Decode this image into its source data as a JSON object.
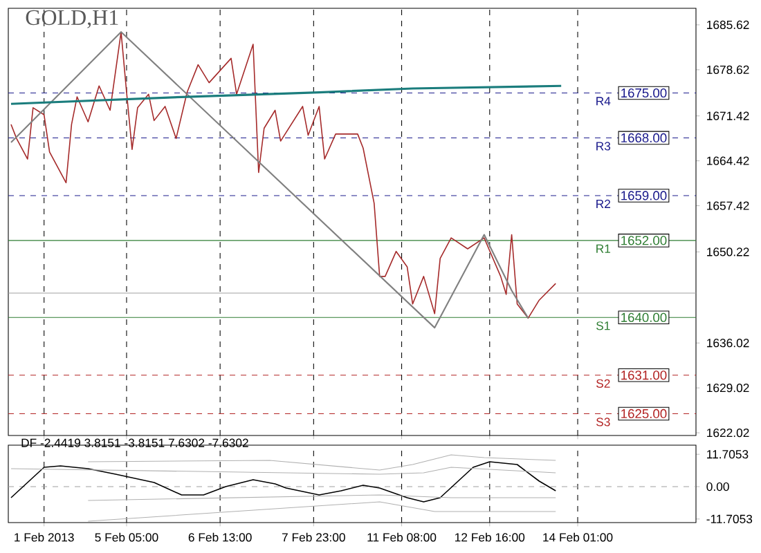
{
  "chart_data": [
    {
      "type": "line",
      "title": "GOLD,H1",
      "categories": [
        null,
        null,
        null,
        null,
        null,
        null,
        null,
        null,
        null,
        null,
        null,
        null,
        null,
        null,
        null,
        null,
        null,
        null,
        null,
        null,
        null,
        null,
        null,
        null,
        null,
        null,
        null,
        null,
        null,
        null,
        null,
        null,
        null,
        null,
        null,
        null,
        null,
        null,
        null,
        null,
        null,
        null,
        null,
        null,
        null,
        null,
        null,
        null,
        null,
        null,
        null,
        null,
        null,
        null,
        null,
        null,
        null,
        null,
        null,
        null,
        null,
        null,
        null,
        null,
        null,
        null,
        null,
        null,
        null,
        null,
        null,
        null,
        null,
        null,
        null,
        null,
        null,
        null,
        null,
        null,
        null,
        null,
        null,
        null,
        null,
        null,
        null,
        null,
        null,
        null,
        null,
        null,
        null,
        null,
        null,
        null,
        null,
        null,
        null,
        null,
        null,
        null,
        null,
        null,
        null,
        null,
        null,
        null,
        null,
        null,
        null,
        null,
        null,
        null,
        null,
        null,
        null,
        null,
        null,
        null,
        null,
        null,
        null,
        null,
        null
      ],
      "ylim": [
        1621.6,
        1688.2
      ],
      "yticks": [
        1622.02,
        1629.02,
        1636.02,
        1650.22,
        1657.42,
        1664.42,
        1671.42,
        1678.62,
        1685.62
      ],
      "tick_labels": "y",
      "grid": "x",
      "marker": "none",
      "line_style": "solid",
      "series": [
        {
          "color": "#a52a2a",
          "values": [
            1670.1,
            1667.9,
            null,
            1664.7,
            1672.7,
            null,
            1671.6,
            1665.8,
            null,
            null,
            1661.0,
            1670.1,
            1674.4,
            null,
            1670.5,
            null,
            1676.1,
            null,
            1672.3,
            null,
            1684.5,
            1675.1,
            1666.2,
            1672.7,
            null,
            1674.8,
            1670.7,
            null,
            1672.9,
            null,
            1667.9,
            null,
            1675.1,
            null,
            1679.4,
            null,
            1676.6,
            null,
            null,
            null,
            1680.4,
            1674.8,
            null,
            null,
            1682.6,
            1662.6,
            1669.5,
            null,
            1672.3,
            1667.5,
            null,
            null,
            null,
            1672.9,
            1668.4,
            null,
            1672.9,
            1664.7,
            null,
            1668.6,
            null,
            null,
            null,
            1668.6,
            1666.4,
            null,
            1657.8,
            1646.4,
            1646.4,
            null,
            1650.3,
            null,
            1647.9,
            1642.1,
            null,
            1646.4,
            null,
            1640.6,
            1649.2,
            null,
            1652.4,
            null,
            null,
            1650.7,
            null,
            null,
            1652.4,
            null,
            null,
            1646.4,
            1643.6,
            1652.9,
            1642.1,
            null,
            1639.9,
            null,
            1642.7,
            null,
            null,
            1645.3,
            null,
            null,
            null,
            null,
            null,
            null,
            null,
            null,
            null,
            null,
            null,
            null,
            null,
            null,
            null,
            null,
            null,
            null,
            null,
            null,
            null,
            null,
            null,
            null,
            null
          ]
        },
        {
          "color": "#808080",
          "values": [
            1667.3,
            null,
            null,
            null,
            null,
            null,
            null,
            null,
            null,
            null,
            null,
            null,
            null,
            null,
            null,
            null,
            null,
            null,
            null,
            null,
            1684.5,
            null,
            null,
            null,
            null,
            null,
            null,
            null,
            null,
            null,
            null,
            null,
            null,
            null,
            null,
            null,
            null,
            null,
            null,
            null,
            null,
            null,
            null,
            null,
            null,
            null,
            null,
            null,
            null,
            null,
            null,
            null,
            null,
            null,
            null,
            null,
            null,
            null,
            null,
            null,
            null,
            null,
            null,
            null,
            null,
            null,
            null,
            null,
            null,
            null,
            null,
            null,
            null,
            null,
            null,
            null,
            null,
            1638.4,
            null,
            null,
            null,
            null,
            null,
            null,
            null,
            null,
            1652.9,
            null,
            null,
            null,
            null,
            1644.2,
            null,
            null,
            1639.9,
            null,
            null,
            null,
            null,
            null,
            null,
            null,
            null,
            null,
            null,
            null,
            null,
            null,
            null,
            null,
            null,
            null,
            null,
            null,
            null,
            null,
            null,
            null,
            null,
            null,
            null,
            null,
            null,
            null,
            null
          ]
        },
        {
          "color": "#1b7d7d",
          "values": [
            1673.3,
            null,
            null,
            null,
            null,
            null,
            null,
            null,
            null,
            null,
            null,
            null,
            null,
            null,
            null,
            null,
            null,
            null,
            null,
            null,
            null,
            null,
            null,
            null,
            null,
            null,
            null,
            null,
            null,
            null,
            null,
            null,
            1674.4,
            null,
            null,
            null,
            null,
            null,
            null,
            null,
            null,
            null,
            null,
            null,
            null,
            null,
            null,
            null,
            null,
            null,
            null,
            null,
            null,
            null,
            null,
            null,
            1675.1,
            null,
            null,
            null,
            null,
            null,
            null,
            null,
            null,
            null,
            null,
            null,
            null,
            null,
            null,
            null,
            null,
            1675.7,
            null,
            null,
            null,
            null,
            null,
            null,
            null,
            null,
            null,
            null,
            null,
            null,
            null,
            null,
            null,
            null,
            null,
            null,
            null,
            null,
            null,
            null,
            null,
            null,
            null,
            null,
            1676.1,
            null,
            null,
            null,
            null,
            null,
            null,
            null,
            null,
            null,
            null,
            null,
            null,
            null,
            null,
            null,
            null,
            null,
            null,
            null,
            null,
            null,
            null,
            null,
            null
          ]
        }
      ],
      "ref_lines": [
        {
          "axis": "y",
          "value": 1675,
          "label": "R4",
          "color": "#1a1a8c",
          "line_style": "dashed"
        },
        {
          "axis": "y",
          "value": 1668,
          "label": "R3",
          "color": "#1a1a8c",
          "line_style": "dashed"
        },
        {
          "axis": "y",
          "value": 1659,
          "label": "R2",
          "color": "#1a1a8c",
          "line_style": "dashed"
        },
        {
          "axis": "y",
          "value": 1652,
          "label": "R1",
          "color": "#2e7d32",
          "line_style": "solid"
        },
        {
          "axis": "y",
          "value": 1643.8,
          "color": "#a0a0a0",
          "line_style": "solid"
        },
        {
          "axis": "y",
          "value": 1640,
          "label": "S1",
          "color": "#2e7d32",
          "line_style": "solid"
        },
        {
          "axis": "y",
          "value": 1631,
          "label": "S2",
          "color": "#b22222",
          "line_style": "dashed"
        },
        {
          "axis": "y",
          "value": 1625,
          "label": "S3",
          "color": "#b22222",
          "line_style": "dashed"
        }
      ],
      "annotations": [
        {
          "text": "1675.00",
          "y": 1675
        },
        {
          "text": "1668.00",
          "y": 1668
        },
        {
          "text": "1659.00",
          "y": 1659
        },
        {
          "text": "1652.00",
          "y": 1652
        },
        {
          "text": "1640.00",
          "y": 1640
        },
        {
          "text": "1631.00",
          "y": 1631
        },
        {
          "text": "1625.00",
          "y": 1625
        }
      ]
    },
    {
      "type": "line",
      "title": "DF -2.4419 3.8151 -3.8151 7.6302 -7.6302",
      "categories": [
        null,
        null,
        null,
        null,
        null,
        null,
        "1 Feb 2013",
        null,
        null,
        null,
        null,
        null,
        null,
        null,
        null,
        null,
        null,
        null,
        null,
        null,
        null,
        "5 Feb 05:00",
        null,
        null,
        null,
        null,
        null,
        null,
        null,
        null,
        null,
        null,
        null,
        null,
        null,
        null,
        null,
        null,
        "6 Feb 13:00",
        null,
        null,
        null,
        null,
        null,
        null,
        null,
        null,
        null,
        null,
        null,
        null,
        null,
        null,
        null,
        null,
        "7 Feb 23:00",
        null,
        null,
        null,
        null,
        null,
        null,
        null,
        null,
        null,
        null,
        null,
        null,
        null,
        null,
        null,
        "11 Feb 08:00",
        null,
        null,
        null,
        null,
        null,
        null,
        null,
        null,
        null,
        null,
        null,
        null,
        null,
        null,
        null,
        "12 Feb 16:00",
        null,
        null,
        null,
        null,
        null,
        null,
        null,
        null,
        null,
        null,
        null,
        null,
        null,
        null,
        null,
        "14 Feb 01:00",
        null,
        null,
        null,
        null,
        null,
        null,
        null,
        null,
        null,
        null,
        null,
        null,
        null,
        null,
        null,
        null,
        null,
        null,
        null,
        null,
        null
      ],
      "ylim": [
        -13,
        15
      ],
      "yticks": [
        {
          "value": -11.7053,
          "label": "-11.7053"
        },
        {
          "value": 0,
          "label": "0.00"
        },
        {
          "value": 11.7053,
          "label": "11.7053"
        }
      ],
      "grid": "x",
      "marker": "none",
      "line_style": "solid",
      "series": [
        {
          "color": "#000000",
          "values": [
            -4,
            null,
            null,
            null,
            null,
            null,
            7,
            null,
            null,
            7.5,
            null,
            null,
            null,
            null,
            6.5,
            null,
            null,
            null,
            null,
            4.5,
            null,
            null,
            null,
            null,
            null,
            null,
            1.5,
            null,
            null,
            null,
            null,
            -3,
            null,
            null,
            null,
            -3,
            null,
            null,
            null,
            0,
            null,
            null,
            null,
            null,
            2.5,
            null,
            null,
            null,
            1,
            null,
            -0.5,
            null,
            null,
            null,
            null,
            null,
            -3,
            null,
            null,
            null,
            -1.5,
            null,
            null,
            null,
            0.5,
            null,
            null,
            -0.5,
            null,
            null,
            null,
            null,
            -4,
            null,
            null,
            -5.5,
            null,
            null,
            -4,
            null,
            null,
            1.5,
            null,
            null,
            7,
            null,
            null,
            9,
            null,
            null,
            null,
            null,
            8,
            null,
            null,
            null,
            2,
            null,
            null,
            -1.5,
            null,
            null,
            null,
            null,
            null,
            null,
            null,
            null,
            null,
            null,
            null,
            null,
            null,
            null,
            null,
            null,
            null,
            null,
            null,
            null,
            null,
            null,
            null,
            null,
            null
          ]
        },
        {
          "color": "#b0b0b0",
          "values": [
            null,
            null,
            null,
            null,
            null,
            null,
            null,
            null,
            null,
            null,
            null,
            null,
            null,
            null,
            9,
            null,
            null,
            null,
            null,
            null,
            null,
            null,
            null,
            null,
            null,
            null,
            null,
            null,
            null,
            null,
            null,
            null,
            null,
            null,
            null,
            null,
            null,
            null,
            null,
            null,
            null,
            null,
            null,
            null,
            null,
            null,
            null,
            9.5,
            null,
            null,
            null,
            null,
            null,
            null,
            null,
            null,
            null,
            null,
            null,
            null,
            null,
            null,
            null,
            null,
            null,
            null,
            null,
            6,
            null,
            null,
            null,
            null,
            null,
            8,
            null,
            null,
            null,
            null,
            null,
            null,
            11.5,
            null,
            null,
            null,
            null,
            null,
            10.5,
            null,
            null,
            null,
            null,
            null,
            null,
            null,
            null,
            null,
            null,
            null,
            null,
            9.5,
            null,
            null,
            null,
            null,
            null,
            null,
            null,
            null,
            null,
            null,
            null,
            null,
            null,
            null,
            null,
            null,
            null,
            null,
            null,
            null,
            null,
            null,
            null,
            null,
            null
          ]
        },
        {
          "color": "#b0b0b0",
          "values": [
            6.5,
            null,
            null,
            null,
            null,
            null,
            null,
            null,
            null,
            null,
            null,
            null,
            null,
            null,
            null,
            null,
            null,
            null,
            null,
            null,
            null,
            null,
            null,
            null,
            null,
            null,
            null,
            null,
            null,
            null,
            null,
            null,
            null,
            null,
            null,
            null,
            null,
            null,
            null,
            null,
            null,
            null,
            null,
            null,
            null,
            null,
            null,
            null,
            null,
            null,
            null,
            null,
            null,
            null,
            null,
            null,
            null,
            null,
            null,
            null,
            null,
            null,
            null,
            null,
            null,
            null,
            null,
            4.5,
            null,
            null,
            null,
            null,
            null,
            null,
            null,
            5,
            null,
            null,
            null,
            null,
            7,
            null,
            null,
            null,
            null,
            null,
            null,
            null,
            null,
            null,
            null,
            null,
            null,
            null,
            null,
            null,
            null,
            null,
            null,
            5,
            null,
            null,
            null,
            null,
            null,
            null,
            null,
            null,
            null,
            null,
            null,
            null,
            null,
            null,
            null,
            null,
            null,
            null,
            null,
            null,
            null,
            null,
            null,
            null,
            null
          ]
        },
        {
          "color": "#b0b0b0",
          "values": [
            null,
            null,
            null,
            null,
            null,
            null,
            null,
            null,
            null,
            null,
            null,
            null,
            null,
            null,
            -5,
            null,
            null,
            null,
            null,
            null,
            null,
            null,
            null,
            null,
            null,
            null,
            null,
            null,
            null,
            null,
            null,
            null,
            null,
            null,
            null,
            null,
            null,
            null,
            null,
            null,
            null,
            null,
            null,
            null,
            null,
            null,
            null,
            null,
            null,
            null,
            null,
            null,
            null,
            null,
            null,
            null,
            null,
            null,
            null,
            null,
            null,
            null,
            null,
            null,
            null,
            null,
            null,
            -3,
            null,
            null,
            null,
            null,
            null,
            null,
            null,
            null,
            null,
            null,
            null,
            null,
            -4,
            null,
            null,
            null,
            null,
            null,
            null,
            null,
            null,
            null,
            null,
            null,
            null,
            null,
            null,
            null,
            null,
            null,
            null,
            -4,
            null,
            null,
            null,
            null,
            null,
            null,
            null,
            null,
            null,
            null,
            null,
            null,
            null,
            null,
            null,
            null,
            null,
            null,
            null,
            null,
            null,
            null,
            null,
            null,
            null
          ]
        },
        {
          "color": "#b0b0b0",
          "values": [
            null,
            null,
            null,
            null,
            null,
            null,
            null,
            null,
            null,
            null,
            null,
            null,
            null,
            null,
            -12.5,
            null,
            null,
            null,
            null,
            null,
            null,
            null,
            null,
            null,
            null,
            null,
            null,
            null,
            null,
            null,
            null,
            null,
            null,
            null,
            null,
            null,
            null,
            null,
            null,
            null,
            null,
            null,
            null,
            null,
            null,
            null,
            null,
            null,
            null,
            null,
            null,
            null,
            null,
            null,
            null,
            null,
            null,
            null,
            null,
            null,
            null,
            null,
            null,
            null,
            null,
            null,
            null,
            -5.5,
            null,
            null,
            null,
            null,
            null,
            null,
            null,
            null,
            null,
            -9,
            null,
            null,
            null,
            null,
            null,
            null,
            null,
            null,
            null,
            null,
            null,
            null,
            null,
            null,
            null,
            null,
            null,
            null,
            null,
            null,
            null,
            -9,
            null,
            null,
            null,
            null,
            null,
            null,
            null,
            null,
            null,
            null,
            null,
            null,
            null,
            null,
            null,
            null,
            null,
            null,
            null,
            null,
            null,
            null,
            null,
            null,
            null
          ]
        }
      ],
      "ref_lines": [
        {
          "axis": "y",
          "value": 0,
          "color": "#a0a0a0",
          "line_style": "dashed"
        }
      ]
    }
  ]
}
